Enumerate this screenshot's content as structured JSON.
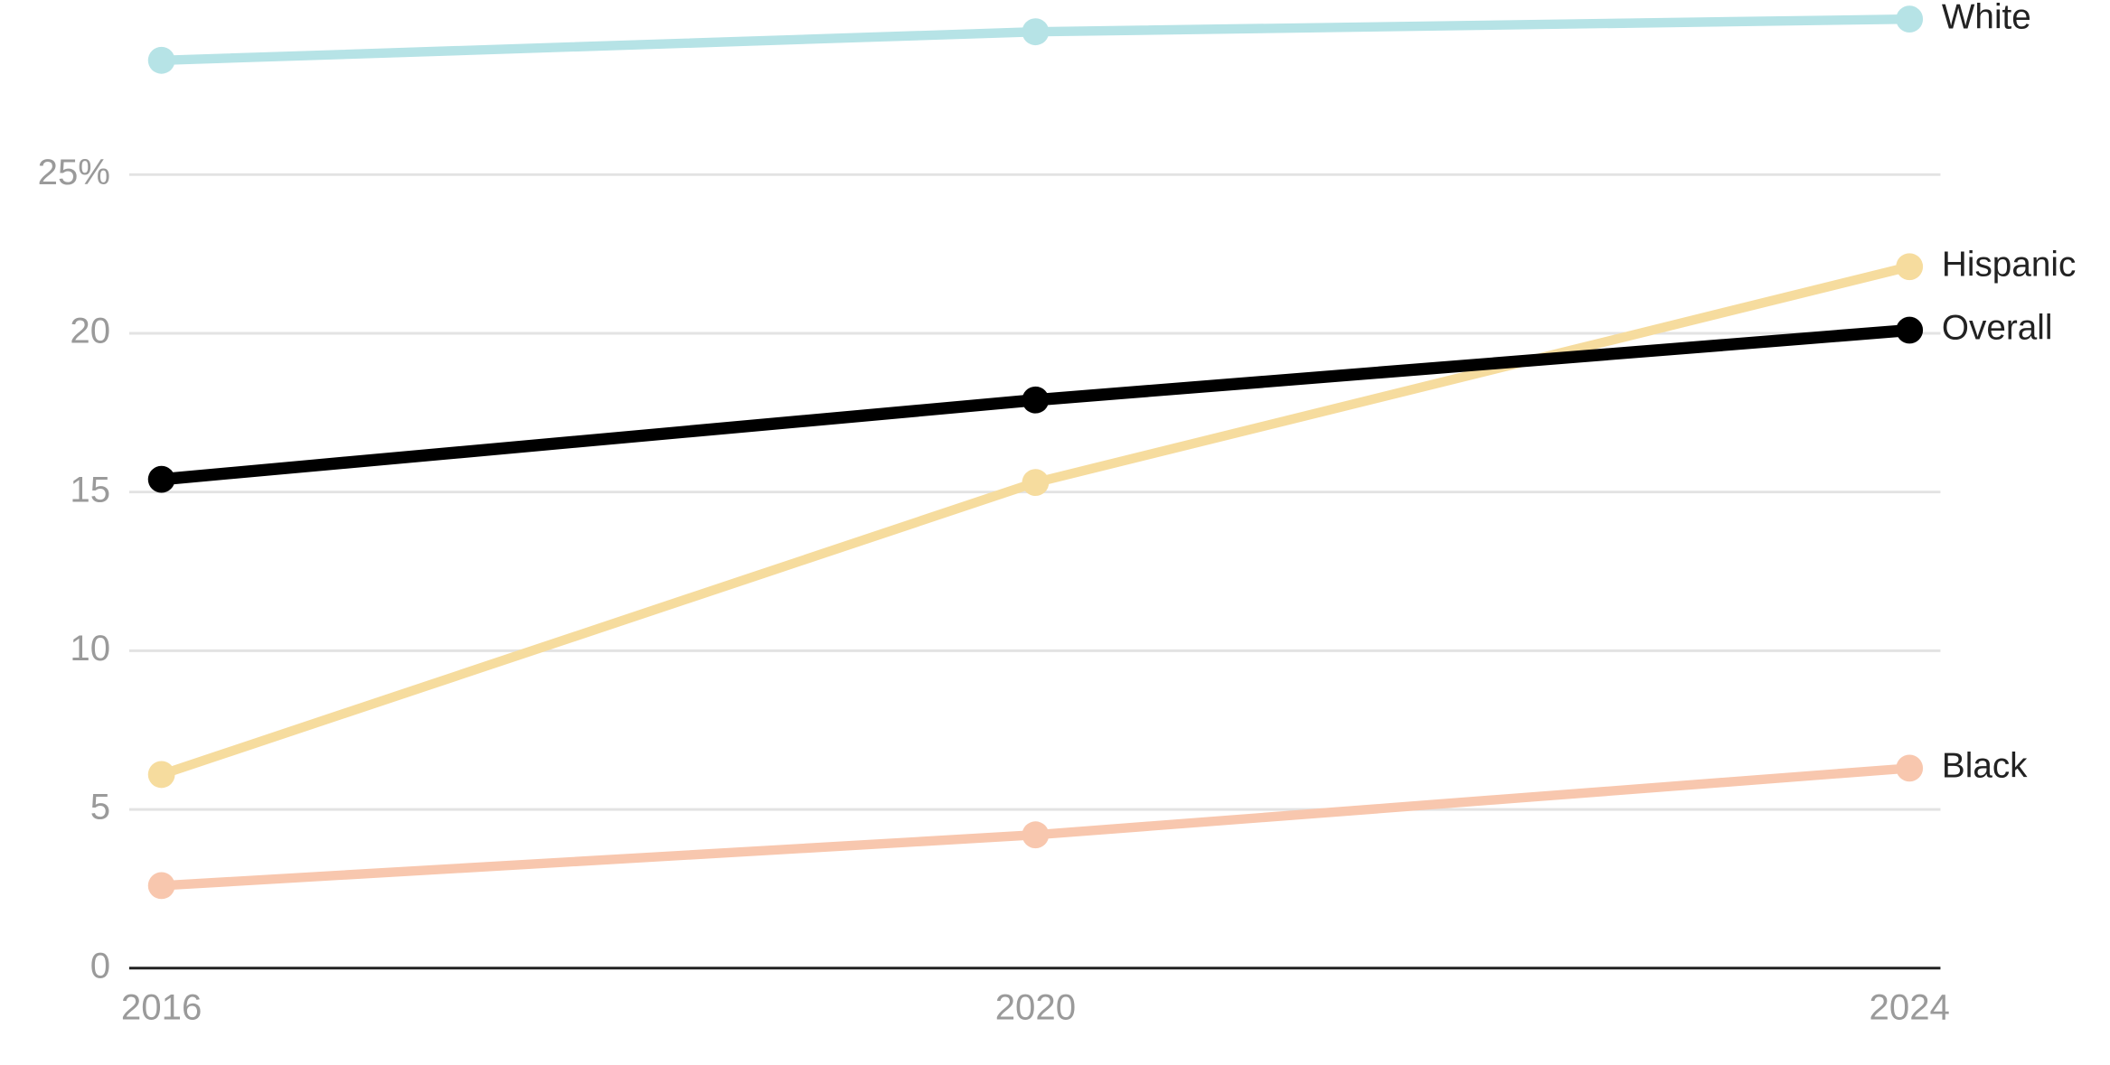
{
  "chart_data": {
    "type": "line",
    "x": [
      2016,
      2020,
      2024
    ],
    "xlim": [
      2016,
      2024
    ],
    "xticks": [
      2016,
      2020,
      2024
    ],
    "ylim": [
      0,
      30.5
    ],
    "yticks": [
      0,
      5,
      10,
      15,
      20,
      {
        "value": 25,
        "label": "25%"
      }
    ],
    "grid": true,
    "series": [
      {
        "name": "White",
        "color": "#b6e3e6",
        "values": [
          28.6,
          29.5,
          29.9
        ]
      },
      {
        "name": "Hispanic",
        "color": "#f6dc9e",
        "values": [
          6.1,
          15.3,
          22.1
        ]
      },
      {
        "name": "Black",
        "color": "#f8c7ae",
        "values": [
          2.6,
          4.2,
          6.3
        ]
      },
      {
        "name": "Overall",
        "color": "#000000",
        "values": [
          15.4,
          17.9,
          20.1
        ]
      }
    ]
  }
}
